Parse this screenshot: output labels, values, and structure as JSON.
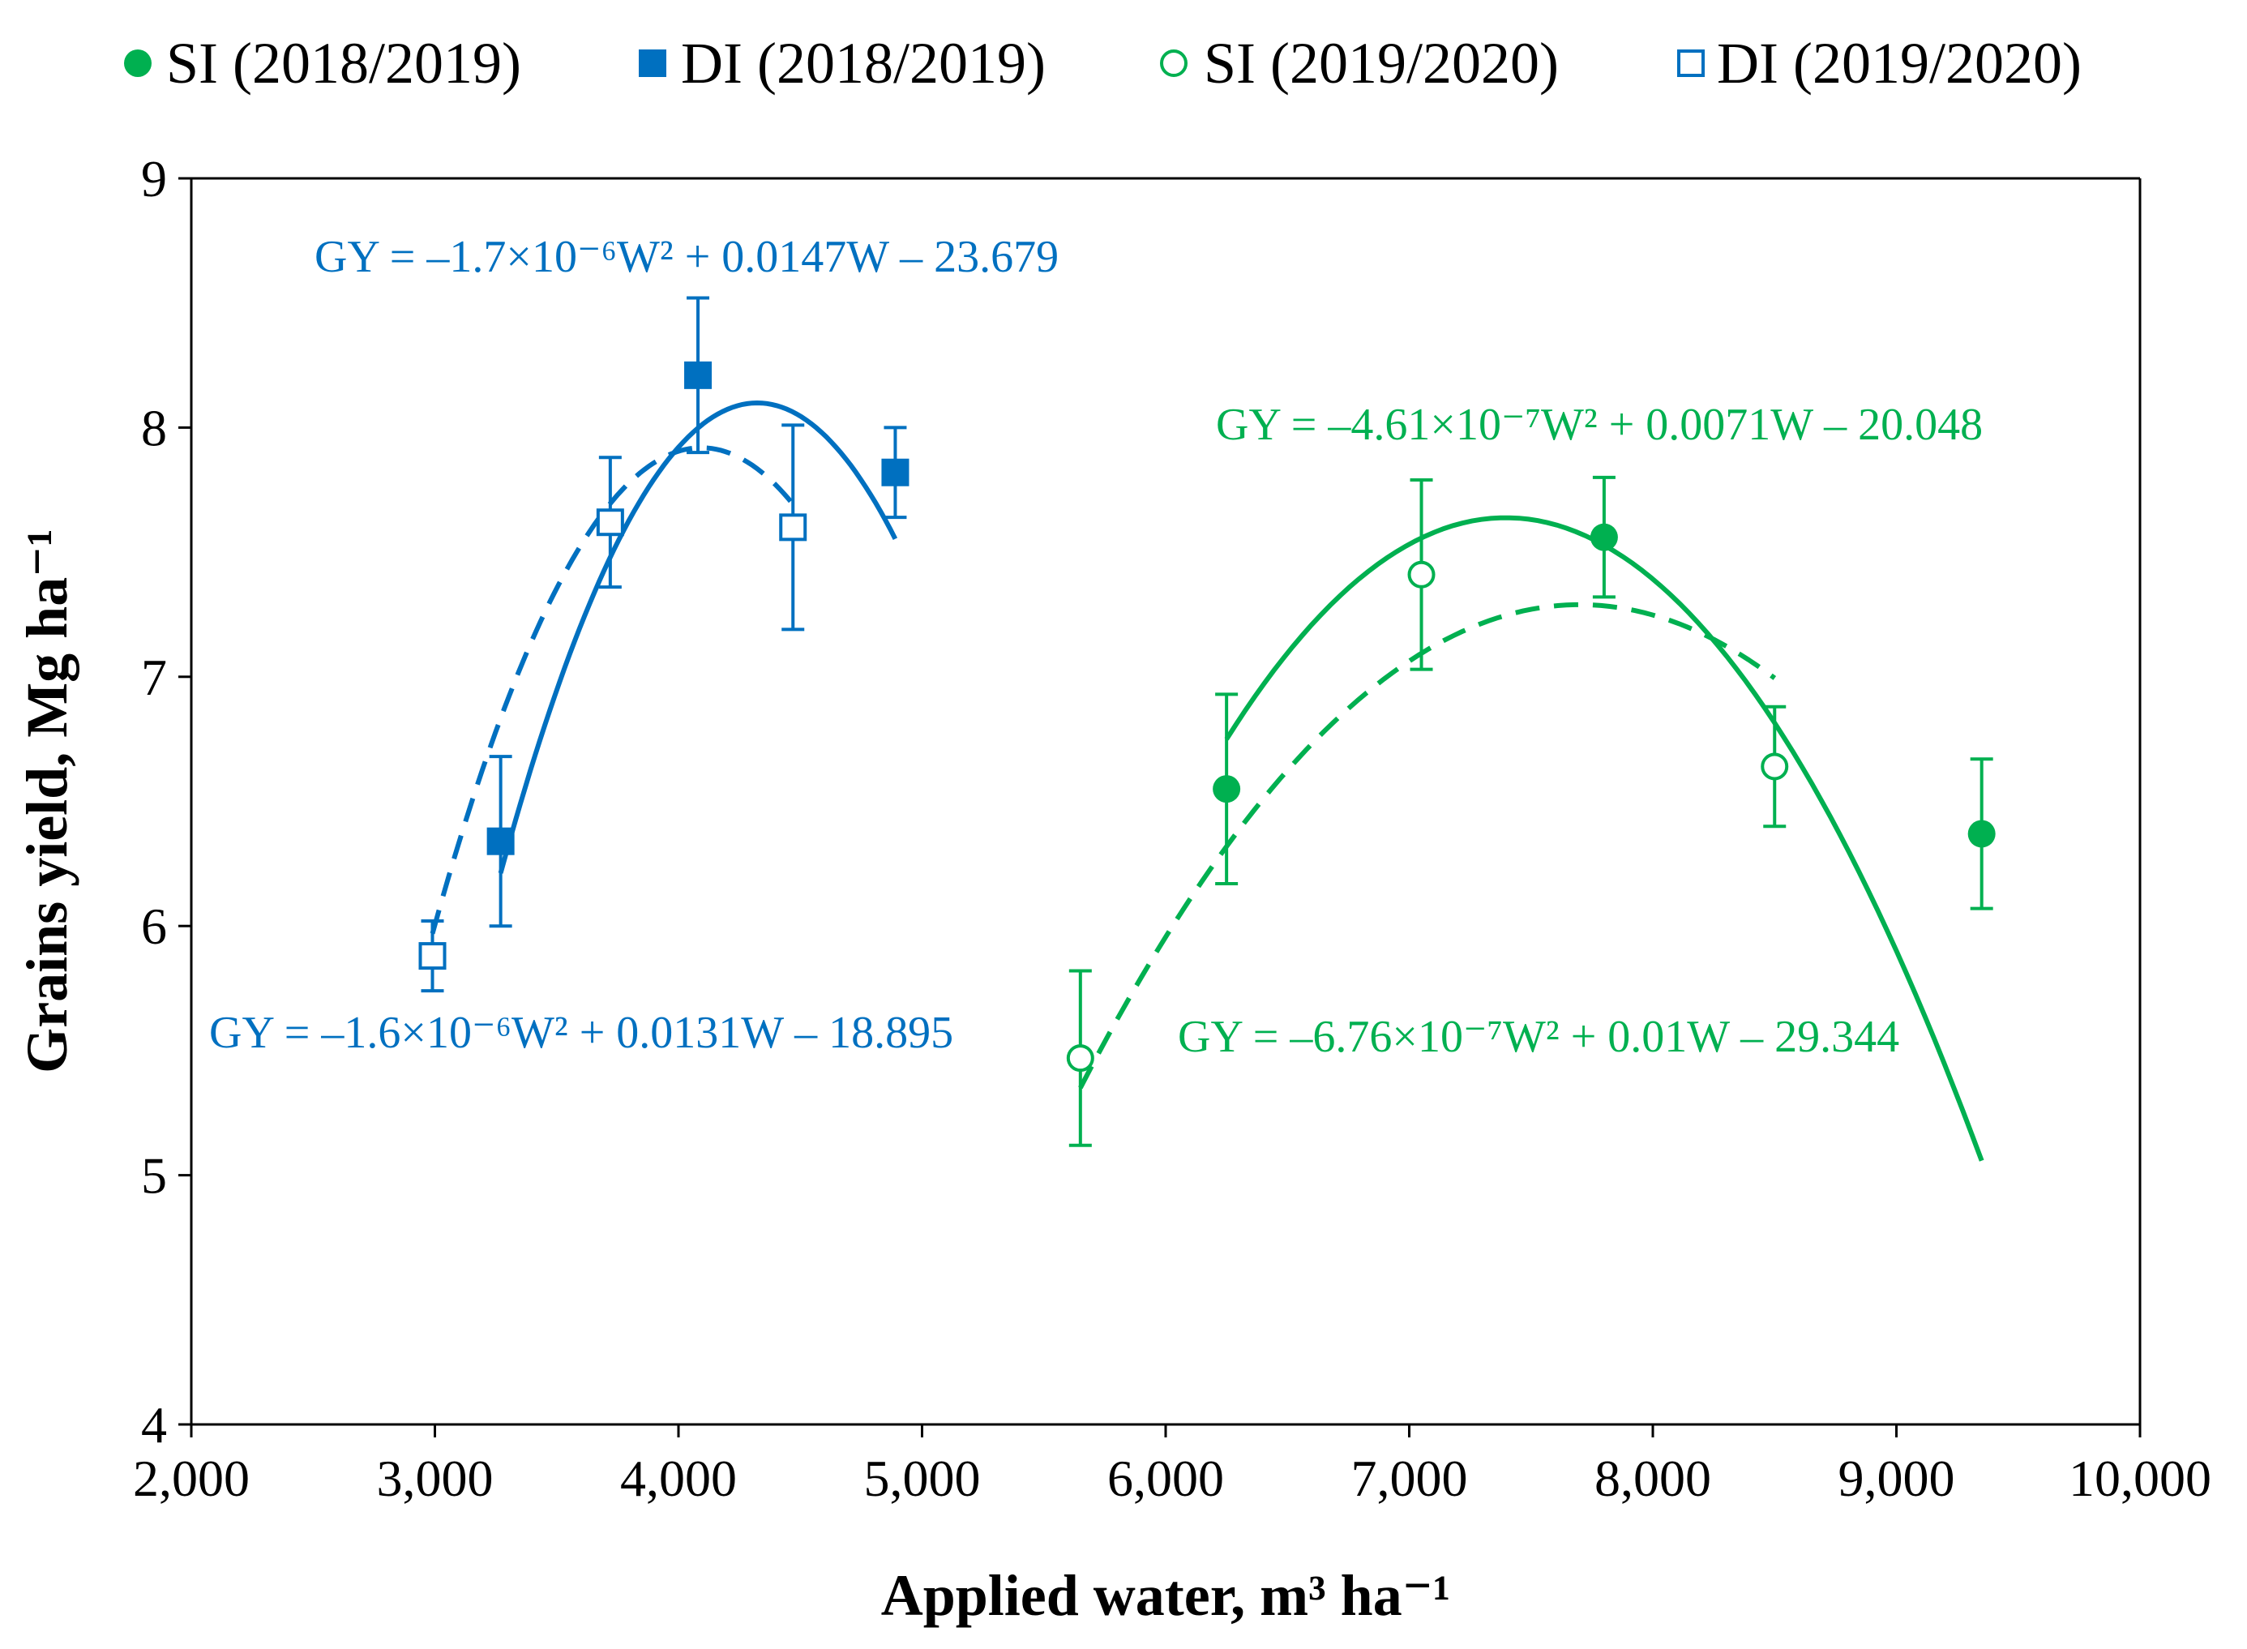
{
  "chart_data": {
    "type": "scatter",
    "xlabel": "Applied water, m³ ha⁻¹",
    "ylabel": "Grains yield, Mg ha⁻¹",
    "xlim": [
      2000,
      10000
    ],
    "ylim": [
      4,
      9
    ],
    "x_ticks": [
      2000,
      3000,
      4000,
      5000,
      6000,
      7000,
      8000,
      9000,
      10000
    ],
    "x_tick_labels": [
      "2,000",
      "3,000",
      "4,000",
      "5,000",
      "6,000",
      "7,000",
      "8,000",
      "9,000",
      "10,000"
    ],
    "y_ticks": [
      4,
      5,
      6,
      7,
      8,
      9
    ],
    "y_tick_labels": [
      "4",
      "5",
      "6",
      "7",
      "8",
      "9"
    ],
    "grid": false,
    "legend_position": "top",
    "colors": {
      "blue": "#0070c0",
      "green": "#00b050"
    },
    "series": [
      {
        "name": "SI (2018/2019)",
        "marker": "circle",
        "filled": true,
        "color": "#00b050",
        "line": "solid",
        "x": [
          6250,
          7800,
          9350
        ],
        "y": [
          6.55,
          7.56,
          6.37
        ],
        "err": [
          0.38,
          0.24,
          0.3
        ],
        "fit": {
          "a": -6.76e-07,
          "b": 0.01,
          "c": -29.344,
          "range": [
            6250,
            9350
          ]
        }
      },
      {
        "name": "DI (2018/2019)",
        "marker": "square",
        "filled": true,
        "color": "#0070c0",
        "line": "solid",
        "x": [
          3270,
          4080,
          4890
        ],
        "y": [
          6.34,
          8.21,
          7.82
        ],
        "err": [
          0.34,
          0.31,
          0.18
        ],
        "fit": {
          "a": -1.7e-06,
          "b": 0.0147,
          "c": -23.679,
          "range": [
            3270,
            4890
          ]
        }
      },
      {
        "name": "SI (2019/2020)",
        "marker": "circle",
        "filled": false,
        "color": "#00b050",
        "line": "dashed",
        "x": [
          5650,
          7050,
          8500
        ],
        "y": [
          5.47,
          7.41,
          6.64
        ],
        "err": [
          0.35,
          0.38,
          0.24
        ],
        "fit": {
          "a": -4.61e-07,
          "b": 0.0071,
          "c": -20.048,
          "range": [
            5650,
            8500
          ]
        }
      },
      {
        "name": "DI (2019/2020)",
        "marker": "square",
        "filled": false,
        "color": "#0070c0",
        "line": "dashed",
        "x": [
          2990,
          3720,
          4470
        ],
        "y": [
          5.88,
          7.62,
          7.6
        ],
        "err": [
          0.14,
          0.26,
          0.41
        ],
        "fit": {
          "a": -1.6e-06,
          "b": 0.0131,
          "c": -18.895,
          "range": [
            2990,
            4470
          ]
        }
      }
    ],
    "annotations": [
      {
        "text": "GY = –1.7×10⁻⁶W² + 0.0147W – 23.679",
        "color": "#0070c0"
      },
      {
        "text": "GY = –4.61×10⁻⁷W² + 0.0071W – 20.048",
        "color": "#00b050"
      },
      {
        "text": "GY = –1.6×10⁻⁶W² + 0.0131W – 18.895",
        "color": "#0070c0"
      },
      {
        "text": "GY = –6.76×10⁻⁷W² + 0.01W – 29.344",
        "color": "#00b050"
      }
    ]
  }
}
